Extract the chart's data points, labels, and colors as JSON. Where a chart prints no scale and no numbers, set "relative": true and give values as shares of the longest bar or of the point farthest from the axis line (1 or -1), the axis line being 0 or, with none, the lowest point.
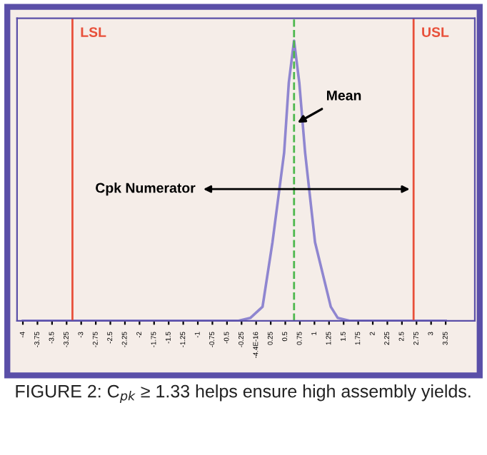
{
  "chart_data": {
    "type": "line",
    "relative": true,
    "x": [
      -4,
      -0.3,
      -0.1,
      0.11,
      0.28,
      0.48,
      0.56,
      0.65,
      0.74,
      0.84,
      1.01,
      1.28,
      1.4,
      1.6,
      3.25
    ],
    "series": [
      {
        "color": "#8f86d0",
        "values": [
          0,
          0,
          0.01,
          0.05,
          0.28,
          0.6,
          0.85,
          1,
          0.85,
          0.6,
          0.28,
          0.05,
          0.01,
          0,
          0
        ]
      }
    ],
    "xlim": [
      -4.1,
      3.75
    ],
    "xticks": [
      -4,
      -3.75,
      -3.5,
      -3.25,
      -3,
      -2.75,
      -2.5,
      -2.25,
      -2,
      -1.75,
      -1.5,
      -1.25,
      -1,
      -0.75,
      -0.5,
      -0.25,
      {
        "value": 0,
        "label": "-4.4E-16"
      },
      0.25,
      0.5,
      0.75,
      1,
      1.25,
      1.5,
      1.75,
      2,
      2.25,
      2.5,
      2.75,
      3,
      3.25
    ],
    "ref_lines": [
      {
        "axis": "x",
        "value": -3.15,
        "label": "LSL",
        "color": "#e8503a",
        "line_style": "solid"
      },
      {
        "axis": "x",
        "value": 2.7,
        "label": "USL",
        "color": "#e8503a",
        "line_style": "solid"
      },
      {
        "axis": "x",
        "value": 0.65,
        "color": "#4db84d",
        "line_style": "dashed"
      }
    ],
    "annotations": [
      {
        "text": "Mean",
        "x": 0.65,
        "y": 0.7
      },
      {
        "text": "Cpk Numerator",
        "x": 2.7,
        "y": 0.47
      },
      "FIGURE 2: C$_{pk}$ ≥ 1.33 helps ensure high assembly yields."
    ],
    "grid": false,
    "marker": "none",
    "line_style": "solid",
    "tick_labels": "x"
  }
}
